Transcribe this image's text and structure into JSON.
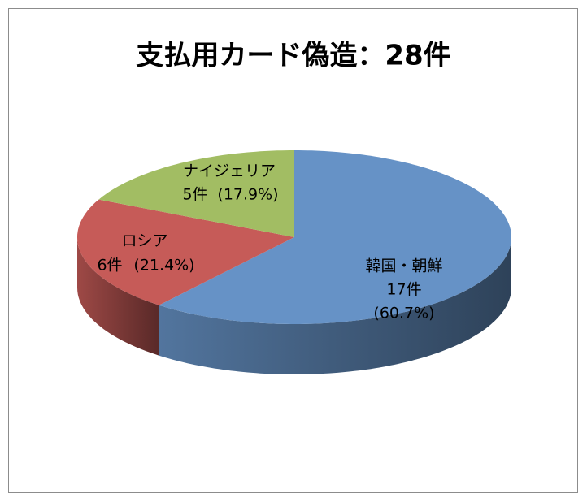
{
  "chart_data": {
    "type": "pie3d",
    "title": "支払用カード偽造：28件",
    "categories": [
      "韓国・朝鮮",
      "ロシア",
      "ナイジェリア"
    ],
    "values": [
      17,
      6,
      5
    ],
    "value_labels": [
      "17件",
      "6件",
      "5件"
    ],
    "percent_labels": [
      "(60.7%)",
      "(21.4%)",
      "(17.9%)"
    ],
    "colors": [
      "#6692c6",
      "#c65b58",
      "#a2bd63"
    ]
  }
}
